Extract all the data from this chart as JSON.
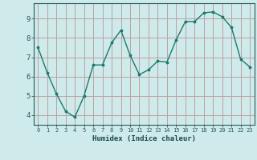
{
  "x": [
    0,
    1,
    2,
    3,
    4,
    5,
    6,
    7,
    8,
    9,
    10,
    11,
    12,
    13,
    14,
    15,
    16,
    17,
    18,
    19,
    20,
    21,
    22,
    23
  ],
  "y": [
    7.5,
    6.2,
    5.1,
    4.2,
    3.9,
    5.0,
    6.6,
    6.6,
    7.75,
    8.4,
    7.1,
    6.1,
    6.35,
    6.8,
    6.75,
    7.9,
    8.85,
    8.85,
    9.3,
    9.35,
    9.1,
    8.55,
    6.9,
    6.5
  ],
  "xlabel": "Humidex (Indice chaleur)",
  "line_color": "#1a7a6e",
  "bg_color": "#ceeaea",
  "grid_color": "#c0a0a0",
  "tick_color": "#2a5a5a",
  "label_color": "#1a4a4a",
  "ylim": [
    3.5,
    9.8
  ],
  "xlim": [
    -0.5,
    23.5
  ],
  "yticks": [
    4,
    5,
    6,
    7,
    8,
    9
  ],
  "xticks": [
    0,
    1,
    2,
    3,
    4,
    5,
    6,
    7,
    8,
    9,
    10,
    11,
    12,
    13,
    14,
    15,
    16,
    17,
    18,
    19,
    20,
    21,
    22,
    23
  ]
}
